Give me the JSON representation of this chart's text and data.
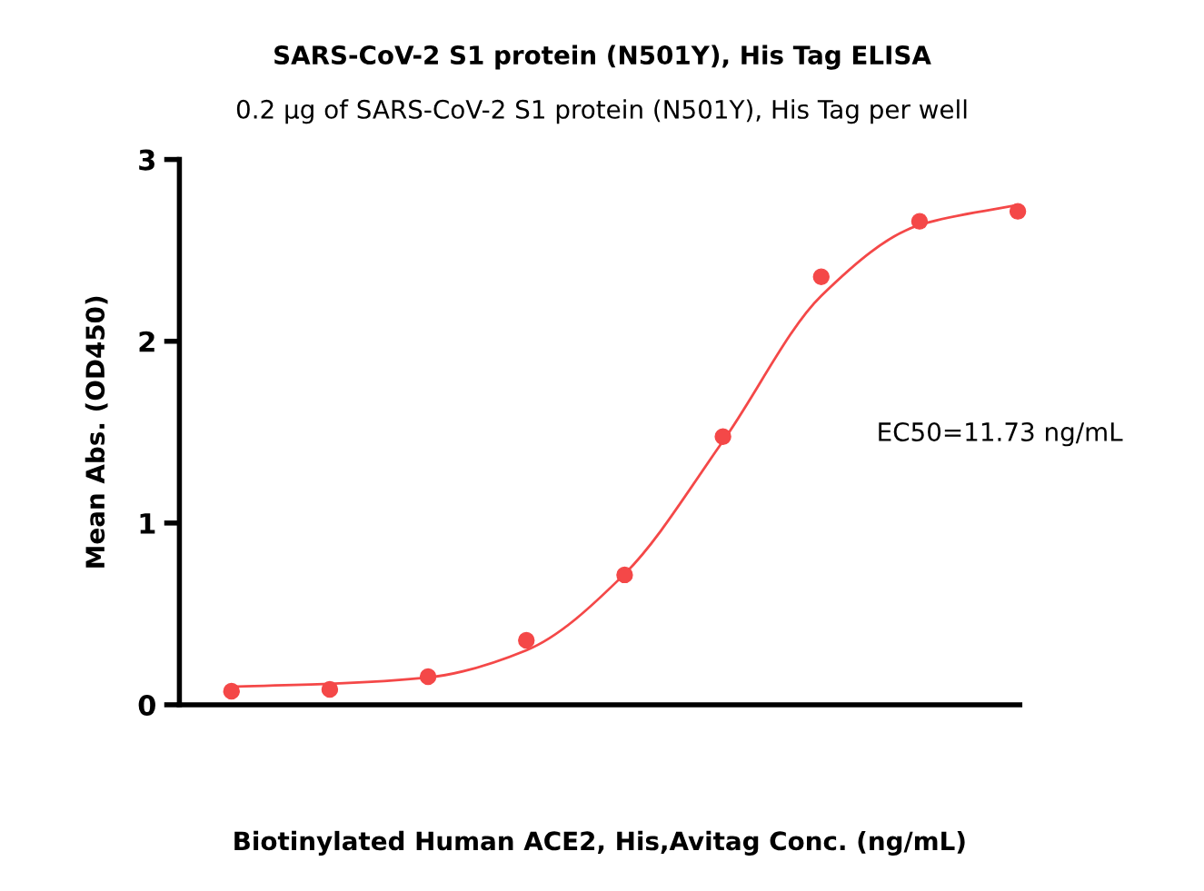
{
  "chart_data": {
    "type": "scatter",
    "title": "SARS-CoV-2 S1 protein (N501Y), His Tag ELISA",
    "subtitle": "0.2 μg of SARS-CoV-2 S1 protein (N501Y), His Tag per well",
    "xlabel": "Biotinylated Human ACE2, His,Avitag Conc. (ng/mL)",
    "ylabel": "Mean Abs. (OD450)",
    "categories": [
      null,
      null,
      null,
      null,
      null,
      null,
      null,
      null,
      null
    ],
    "series": [
      {
        "color": "#f44848",
        "values": [
          0.075,
          0.085,
          0.155,
          0.355,
          0.715,
          1.475,
          2.355,
          2.66,
          2.715
        ]
      },
      {
        "type": "line",
        "marker": "none",
        "color": "#f44848",
        "values": [
          0.1,
          0.115,
          0.15,
          0.3,
          0.72,
          1.45,
          2.25,
          2.64,
          2.75
        ]
      }
    ],
    "ylim": [
      0,
      3
    ],
    "yticks": [
      0,
      1,
      2,
      3
    ],
    "tick_labels": "y",
    "grid": false,
    "legend": false,
    "marker": "circle",
    "annotations": [
      "EC50=11.73 ng/mL"
    ]
  }
}
